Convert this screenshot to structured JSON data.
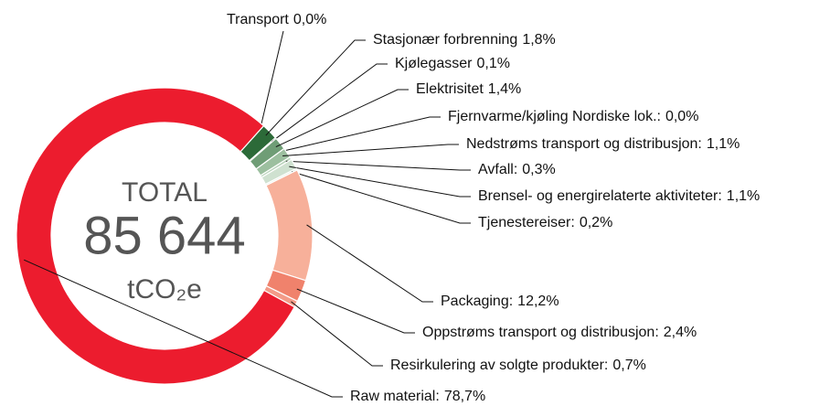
{
  "chart_data": {
    "type": "donut",
    "center_title": "TOTAL",
    "total": {
      "value": 85644,
      "label": "85 644"
    },
    "unit": "tCO₂e",
    "categories": [
      "Transport",
      "Stasjonær forbrenning",
      "Kjølegasser",
      "Elektrisitet",
      "Fjernvarme/kjøling Nordiske lok.:",
      "Nedstrøms transport og distribusjon:",
      "Avfall:",
      "Brensel- og energirelaterte aktiviteter:",
      "Tjenestereiser:",
      "Packaging:",
      "Oppstrøms transport og distribusjon:",
      "Resirkulering av solgte produkter:",
      "Raw material:"
    ],
    "values": [
      0.0,
      1.8,
      0.1,
      1.4,
      0.0,
      1.1,
      0.3,
      1.1,
      0.2,
      12.2,
      2.4,
      0.7,
      78.7
    ],
    "value_labels": [
      "0,0%",
      "1,8%",
      "0,1%",
      "1,4%",
      "0,0%",
      "1,1%",
      "0,3%",
      "1,1%",
      "0,2%",
      "12,2%",
      "2,4%",
      "0,7%",
      "78,7%"
    ],
    "colors": [
      "#1f5a2c",
      "#2c6a38",
      "#5a8f62",
      "#6f9d76",
      "#8fb595",
      "#9cbf9f",
      "#b9d3bb",
      "#cfe1d0",
      "#e2ede2",
      "#f7b09a",
      "#f0826c",
      "#f39b88",
      "#ec1c2e"
    ]
  }
}
